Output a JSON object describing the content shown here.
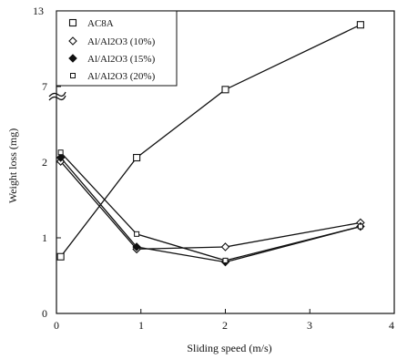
{
  "chart_data": {
    "type": "line",
    "title": "",
    "xlabel": "Sliding speed (m/s)",
    "ylabel": "Weight loss (mg)",
    "xlim": [
      0,
      4
    ],
    "x_ticks": [
      "0",
      "1",
      "2",
      "3",
      "4"
    ],
    "y_scale": "broken",
    "y_ticks": [
      "0",
      "1",
      "2",
      "7",
      "13"
    ],
    "y_break_between": [
      2,
      7
    ],
    "grid": false,
    "legend_position": "top-left",
    "series": [
      {
        "name": "AC8A",
        "marker": "square-open",
        "x": [
          0.05,
          0.95,
          2.0,
          3.6
        ],
        "y": [
          0.75,
          2.3,
          6.8,
          11.9
        ]
      },
      {
        "name": "Al/Al2O3 (10%)",
        "marker": "diamond-open",
        "x": [
          0.05,
          0.95,
          2.0,
          3.6
        ],
        "y": [
          2.05,
          0.85,
          0.88,
          1.2
        ]
      },
      {
        "name": "Al/Al2O3 (15%)",
        "marker": "diamond-filled",
        "x": [
          0.05,
          0.95,
          2.0,
          3.6
        ],
        "y": [
          2.3,
          0.88,
          0.68,
          1.15
        ]
      },
      {
        "name": "Al/Al2O3 (20%)",
        "marker": "square-small",
        "x": [
          0.05,
          0.95,
          2.0,
          3.6
        ],
        "y": [
          2.65,
          1.05,
          0.7,
          1.15
        ]
      }
    ]
  }
}
